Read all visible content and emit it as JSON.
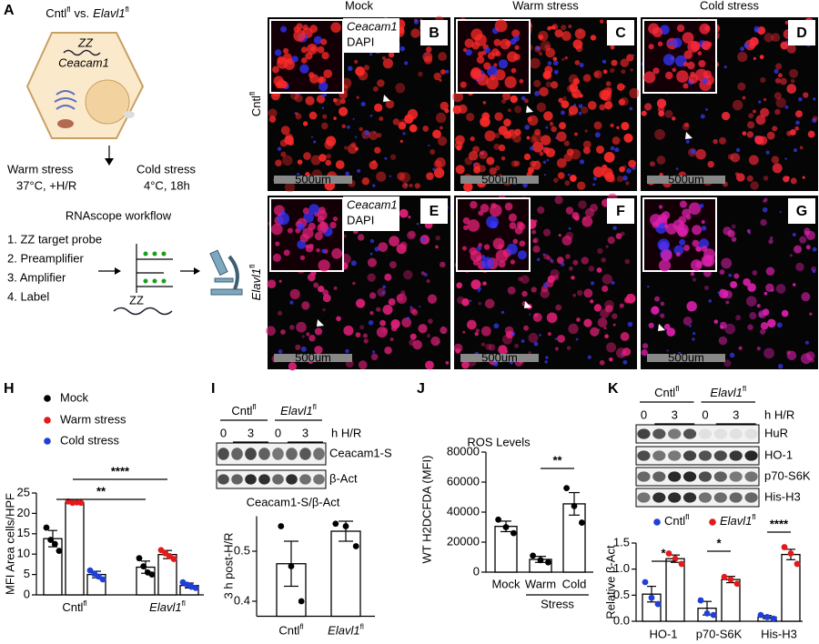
{
  "schematic": {
    "letter": "A",
    "title": {
      "left": {
        "name": "Cntl",
        "sup": "fl"
      },
      "joiner": "vs.",
      "right": {
        "name": "Elavl1",
        "sup": "fl",
        "italic": true
      }
    },
    "probe": "ZZ",
    "gene": "Ceacam1",
    "conditions": [
      {
        "name": "Warm stress",
        "detail": "37°C, +H/R"
      },
      {
        "name": "Cold stress",
        "detail": "4°C, 18h"
      }
    ],
    "workflow_title": "RNAscope workflow",
    "workflow_steps": [
      {
        "text": "1. ZZ target probe",
        "color": "#e8141b"
      },
      {
        "text": "2. Preamplifier",
        "color": "#b531d6"
      },
      {
        "text": "3. Amplifier",
        "color": "#1a1ad9"
      },
      {
        "text": "4. Label",
        "color": "#1a9e1a"
      }
    ],
    "diagram_probe": "ZZ"
  },
  "micrographs": {
    "columns": [
      "Mock",
      "Warm stress",
      "Cold stress"
    ],
    "rows": [
      {
        "name": "Cntl",
        "sup": "fl"
      },
      {
        "name": "Elavl1",
        "sup": "fl",
        "italic": true
      }
    ],
    "legend": [
      {
        "text": "Ceacam1",
        "color": "#ff2020"
      },
      {
        "text": "DAPI",
        "color": "#2424ff"
      }
    ],
    "panels": [
      {
        "letter": "B",
        "scale_label": "500um"
      },
      {
        "letter": "C",
        "scale_label": "500um"
      },
      {
        "letter": "D",
        "scale_label": "500um"
      },
      {
        "letter": "E",
        "scale_label": "500um"
      },
      {
        "letter": "F",
        "scale_label": "500um"
      },
      {
        "letter": "G",
        "scale_label": "500um"
      }
    ]
  },
  "chart_data": [
    {
      "type": "grouped-bar",
      "letter": "H",
      "y_label": "MFI Area cells/HPF",
      "bar_color": "#ffffff",
      "categories": [
        {
          "name": "Cntl",
          "sup": "fl"
        },
        {
          "name": "Elavl1",
          "sup": "fl",
          "italic": true
        }
      ],
      "series": [
        {
          "name": "Mock",
          "color": "#000000",
          "values": [
            13.8,
            6.8
          ],
          "errors": [
            2.0,
            1.5
          ],
          "points": [
            [
              16.5,
              13.5,
              12.5,
              10.8
            ],
            [
              9,
              7,
              5.5,
              5
            ]
          ]
        },
        {
          "name": "Warm stress",
          "color": "#e31a1c",
          "values": [
            22.7,
            9.9
          ],
          "errors": [
            0.3,
            1.0
          ],
          "points": [
            [
              22.9,
              22.6,
              22.7,
              22.6
            ],
            [
              11,
              10.2,
              9.5,
              8.8
            ]
          ]
        },
        {
          "name": "Cold stress",
          "color": "#1f3fd6",
          "values": [
            5.0,
            2.3
          ],
          "errors": [
            0.8,
            0.6
          ],
          "points": [
            [
              6,
              5.2,
              4.5,
              3.8
            ],
            [
              3.1,
              2.5,
              2,
              1.7
            ]
          ]
        }
      ],
      "ylim": [
        0,
        25
      ],
      "yticks": [
        0,
        5,
        10,
        15,
        20,
        25
      ],
      "significance": [
        "****",
        "**"
      ]
    },
    {
      "type": "bar",
      "letter": "I",
      "title": "Ceacam1-S/β-Act",
      "y_label": "3 h post-H/R",
      "bar_color": "#ffffff",
      "point_color": "#000000",
      "blot": {
        "groups": [
          {
            "name": "Cntl",
            "sup": "fl"
          },
          {
            "name": "Elavl1",
            "sup": "fl",
            "italic": true
          }
        ],
        "timepoints": [
          "0",
          "3",
          "0",
          "3"
        ],
        "time_unit": "h H/R",
        "bands": [
          "Ceacam1-S",
          "β-Act"
        ]
      },
      "categories": [
        {
          "name": "Cntl",
          "sup": "fl"
        },
        {
          "name": "Elavl1",
          "sup": "fl",
          "italic": true
        }
      ],
      "values": [
        0.475,
        0.54
      ],
      "errors": [
        0.045,
        0.02
      ],
      "points": [
        [
          0.55,
          0.47,
          0.4
        ],
        [
          0.555,
          0.55,
          0.51
        ]
      ],
      "ylim": [
        0.37,
        0.57
      ],
      "yticks": [
        0.4,
        0.5
      ]
    },
    {
      "type": "bar",
      "letter": "J",
      "title": "ROS Levels",
      "y_label": "WT H2DCFDA (MFI)",
      "bar_color": "#ffffff",
      "point_color": "#000000",
      "categories": [
        "Mock",
        "Warm",
        "Cold"
      ],
      "group_label": "Stress",
      "values": [
        30500,
        8500,
        45500
      ],
      "errors": [
        3500,
        2000,
        7500
      ],
      "points": [
        [
          35000,
          30000,
          26000
        ],
        [
          11000,
          8000,
          6500
        ],
        [
          56000,
          44000,
          33000
        ]
      ],
      "ylim": [
        0,
        80000
      ],
      "yticks": [
        0,
        20000,
        40000,
        60000,
        80000
      ],
      "significance": [
        "**"
      ]
    },
    {
      "type": "grouped-bar",
      "letter": "K",
      "y_label": "Relative β-Act",
      "bar_color": "#ffffff",
      "blot": {
        "groups": [
          {
            "name": "Cntl",
            "sup": "fl"
          },
          {
            "name": "Elavl1",
            "sup": "fl",
            "italic": true
          }
        ],
        "timepoints": [
          "0",
          "3",
          "0",
          "3"
        ],
        "time_unit": "h H/R",
        "bands": [
          "HuR",
          "HO-1",
          "p70-S6K",
          "His-H3"
        ]
      },
      "categories": [
        "HO-1",
        "p70-S6K",
        "His-H3"
      ],
      "series": [
        {
          "name": {
            "name": "Cntl",
            "sup": "fl"
          },
          "color": "#1f3fd6",
          "values": [
            0.52,
            0.25,
            0.08
          ],
          "errors": [
            0.15,
            0.13,
            0.03
          ],
          "points": [
            [
              0.75,
              0.45,
              0.33
            ],
            [
              0.4,
              0.15,
              0.12
            ],
            [
              0.12,
              0.08,
              0.05
            ]
          ]
        },
        {
          "name": {
            "name": "Elavl1",
            "sup": "fl",
            "italic": true
          },
          "color": "#e31a1c",
          "values": [
            1.2,
            0.8,
            1.28
          ],
          "errors": [
            0.07,
            0.06,
            0.1
          ],
          "points": [
            [
              1.3,
              1.2,
              1.1
            ],
            [
              0.85,
              0.8,
              0.72
            ],
            [
              1.42,
              1.3,
              1.1
            ]
          ]
        }
      ],
      "ylim": [
        0,
        1.5
      ],
      "yticks": [
        {
          "value": 0,
          "label": "0.0"
        },
        0.5,
        {
          "value": 1,
          "label": "1.0"
        },
        1.5
      ],
      "significance": [
        "*",
        "*",
        "****"
      ]
    }
  ]
}
